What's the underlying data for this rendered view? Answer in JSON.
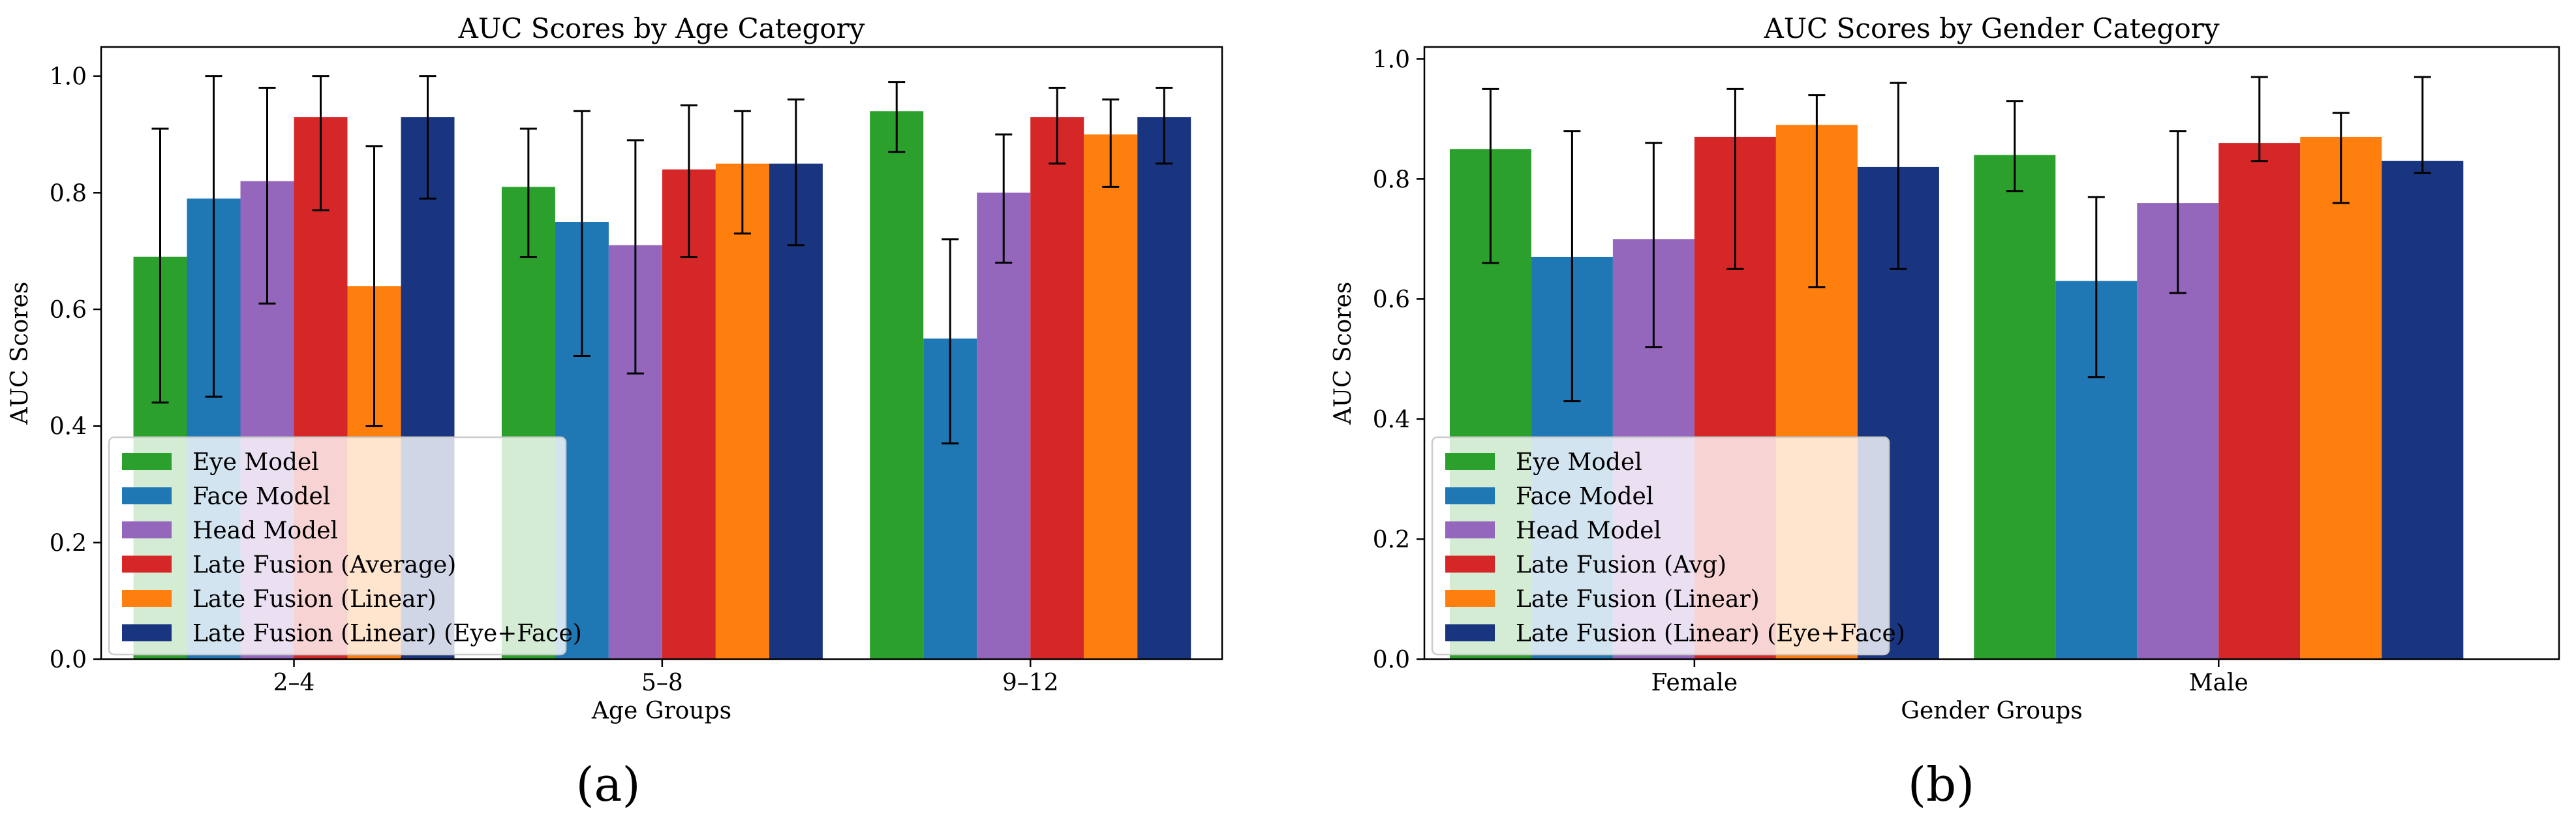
{
  "chart_data": [
    {
      "type": "bar",
      "title": "AUC Scores by Age Category",
      "xlabel": "Age Groups",
      "ylabel": "AUC Scores",
      "ylim": [
        0,
        1.05
      ],
      "yticks": [
        "0.0",
        "0.2",
        "0.4",
        "0.6",
        "0.8",
        "1.0"
      ],
      "categories": [
        "2–4",
        "5–8",
        "9–12"
      ],
      "legend_position": "lower-left",
      "series": [
        {
          "name": "Eye Model",
          "color": "#2ca02c",
          "values": [
            0.69,
            0.81,
            0.94
          ],
          "err_low": [
            0.44,
            0.69,
            0.87
          ],
          "err_high": [
            0.91,
            0.91,
            0.99
          ]
        },
        {
          "name": "Face Model",
          "color": "#1f77b4",
          "values": [
            0.79,
            0.75,
            0.55
          ],
          "err_low": [
            0.45,
            0.52,
            0.37
          ],
          "err_high": [
            1.0,
            0.94,
            0.72
          ]
        },
        {
          "name": "Head Model",
          "color": "#9467bd",
          "values": [
            0.82,
            0.71,
            0.8
          ],
          "err_low": [
            0.61,
            0.49,
            0.68
          ],
          "err_high": [
            0.98,
            0.89,
            0.9
          ]
        },
        {
          "name": "Late Fusion (Average)",
          "color": "#d62728",
          "values": [
            0.93,
            0.84,
            0.93
          ],
          "err_low": [
            0.77,
            0.69,
            0.85
          ],
          "err_high": [
            1.0,
            0.95,
            0.98
          ]
        },
        {
          "name": "Late Fusion (Linear)",
          "color": "#ff7f0e",
          "values": [
            0.64,
            0.85,
            0.9
          ],
          "err_low": [
            0.4,
            0.73,
            0.81
          ],
          "err_high": [
            0.88,
            0.94,
            0.96
          ]
        },
        {
          "name": "Late Fusion (Linear) (Eye+Face)",
          "color": "#1a3580",
          "values": [
            0.93,
            0.85,
            0.93
          ],
          "err_low": [
            0.79,
            0.71,
            0.85
          ],
          "err_high": [
            1.0,
            0.96,
            0.98
          ]
        }
      ]
    },
    {
      "type": "bar",
      "title": "AUC Scores by Gender Category",
      "xlabel": "Gender Groups",
      "ylabel": "AUC Scores",
      "ylim": [
        0,
        1.02
      ],
      "yticks": [
        "0.0",
        "0.2",
        "0.4",
        "0.6",
        "0.8",
        "1.0"
      ],
      "categories": [
        "Female",
        "Male"
      ],
      "legend_position": "lower-left",
      "series": [
        {
          "name": "Eye Model",
          "color": "#2ca02c",
          "values": [
            0.85,
            0.84
          ],
          "err_low": [
            0.66,
            0.78
          ],
          "err_high": [
            0.95,
            0.93
          ]
        },
        {
          "name": "Face Model",
          "color": "#1f77b4",
          "values": [
            0.67,
            0.63
          ],
          "err_low": [
            0.43,
            0.47
          ],
          "err_high": [
            0.88,
            0.77
          ]
        },
        {
          "name": "Head Model",
          "color": "#9467bd",
          "values": [
            0.7,
            0.76
          ],
          "err_low": [
            0.52,
            0.61
          ],
          "err_high": [
            0.86,
            0.88
          ]
        },
        {
          "name": "Late Fusion (Avg)",
          "color": "#d62728",
          "values": [
            0.87,
            0.86
          ],
          "err_low": [
            0.65,
            0.83
          ],
          "err_high": [
            0.95,
            0.97
          ]
        },
        {
          "name": "Late Fusion (Linear)",
          "color": "#ff7f0e",
          "values": [
            0.89,
            0.87
          ],
          "err_low": [
            0.62,
            0.76
          ],
          "err_high": [
            0.94,
            0.91
          ]
        },
        {
          "name": "Late Fusion (Linear) (Eye+Face)",
          "color": "#1a3580",
          "values": [
            0.82,
            0.83
          ],
          "err_low": [
            0.65,
            0.81
          ],
          "err_high": [
            0.96,
            0.97
          ]
        }
      ]
    }
  ],
  "panel_labels": [
    "(a)",
    "(b)"
  ]
}
